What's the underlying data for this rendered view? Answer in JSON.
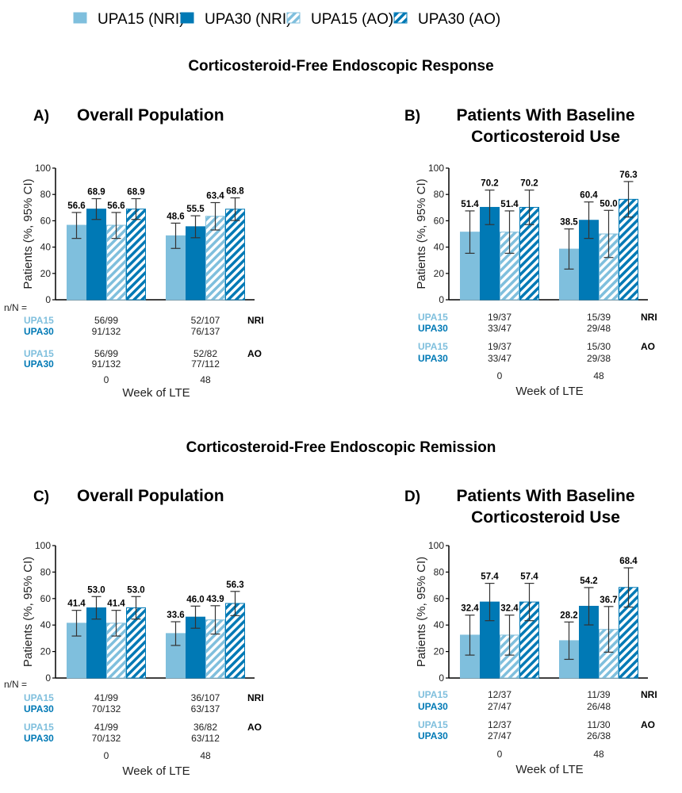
{
  "colors": {
    "light": "#7fbfdd",
    "dark": "#0079b5",
    "error_bar": "#333333",
    "axis": "#000000"
  },
  "legend": [
    {
      "label": "UPA15 (NRI)",
      "color": "#7fbfdd",
      "pattern": "solid"
    },
    {
      "label": "UPA30 (NRI)",
      "color": "#0079b5",
      "pattern": "solid"
    },
    {
      "label": "UPA15 (AO)",
      "color": "#7fbfdd",
      "pattern": "hatched"
    },
    {
      "label": "UPA30 (AO)",
      "color": "#0079b5",
      "pattern": "hatched"
    }
  ],
  "section_titles": [
    "Corticosteroid-Free Endoscopic Response",
    "Corticosteroid-Free Endoscopic Remission"
  ],
  "chart_data": [
    {
      "panel": "A)",
      "title_lines": [
        "Overall Population"
      ],
      "type": "bar",
      "categories": [
        "0",
        "48"
      ],
      "xlabel": "Week of LTE",
      "ylabel": "Patients (%, 95% CI)",
      "ylim": [
        0,
        100
      ],
      "yticks": [
        "0",
        "20",
        "40",
        "60",
        "80",
        "100"
      ],
      "grid": false,
      "series": [
        {
          "name": "UPA15 (NRI)",
          "values": [
            56.6,
            48.6
          ],
          "ci_low": [
            46.6,
            39.0
          ],
          "ci_high": [
            66.3,
            58.2
          ],
          "labels": [
            "56.6",
            "48.6"
          ]
        },
        {
          "name": "UPA30 (NRI)",
          "values": [
            68.9,
            55.5
          ],
          "ci_low": [
            61.0,
            47.1
          ],
          "ci_high": [
            76.8,
            63.8
          ],
          "labels": [
            "68.9",
            "55.5"
          ]
        },
        {
          "name": "UPA15 (AO)",
          "values": [
            56.6,
            63.4
          ],
          "ci_low": [
            46.6,
            53.0
          ],
          "ci_high": [
            66.3,
            73.8
          ],
          "labels": [
            "56.6",
            "63.4"
          ]
        },
        {
          "name": "UPA30 (AO)",
          "values": [
            68.9,
            68.8
          ],
          "ci_low": [
            61.0,
            60.2
          ],
          "ci_high": [
            76.8,
            77.4
          ],
          "labels": [
            "68.9",
            "68.8"
          ]
        }
      ],
      "table": {
        "prefix": "n/N =",
        "nri_label": "NRI",
        "ao_label": "AO",
        "row_labels": [
          "UPA15",
          "UPA30"
        ],
        "nri": [
          [
            "56/99",
            "52/107"
          ],
          [
            "91/132",
            "76/137"
          ]
        ],
        "ao": [
          [
            "56/99",
            "52/82"
          ],
          [
            "91/132",
            "77/112"
          ]
        ]
      }
    },
    {
      "panel": "B)",
      "title_lines": [
        "Patients With Baseline",
        "Corticosteroid Use"
      ],
      "type": "bar",
      "categories": [
        "0",
        "48"
      ],
      "xlabel": "Week of LTE",
      "ylabel": "Patients (%, 95% CI)",
      "ylim": [
        0,
        100
      ],
      "yticks": [
        "0",
        "20",
        "40",
        "60",
        "80",
        "100"
      ],
      "grid": false,
      "series": [
        {
          "name": "UPA15 (NRI)",
          "values": [
            51.4,
            38.5
          ],
          "ci_low": [
            35.3,
            23.3
          ],
          "ci_high": [
            67.5,
            53.8
          ],
          "labels": [
            "51.4",
            "38.5"
          ]
        },
        {
          "name": "UPA30 (NRI)",
          "values": [
            70.2,
            60.4
          ],
          "ci_low": [
            57.1,
            46.6
          ],
          "ci_high": [
            83.3,
            74.3
          ],
          "labels": [
            "70.2",
            "60.4"
          ]
        },
        {
          "name": "UPA15 (AO)",
          "values": [
            51.4,
            50.0
          ],
          "ci_low": [
            35.3,
            32.1
          ],
          "ci_high": [
            67.5,
            67.9
          ],
          "labels": [
            "51.4",
            "50.0"
          ]
        },
        {
          "name": "UPA30 (AO)",
          "values": [
            70.2,
            76.3
          ],
          "ci_low": [
            57.1,
            62.8
          ],
          "ci_high": [
            83.3,
            89.8
          ],
          "labels": [
            "70.2",
            "76.3"
          ]
        }
      ],
      "table": {
        "prefix": "",
        "nri_label": "NRI",
        "ao_label": "AO",
        "row_labels": [
          "UPA15",
          "UPA30"
        ],
        "nri": [
          [
            "19/37",
            "15/39"
          ],
          [
            "33/47",
            "29/48"
          ]
        ],
        "ao": [
          [
            "19/37",
            "15/30"
          ],
          [
            "33/47",
            "29/38"
          ]
        ]
      }
    },
    {
      "panel": "C)",
      "title_lines": [
        "Overall Population"
      ],
      "type": "bar",
      "categories": [
        "0",
        "48"
      ],
      "xlabel": "Week of LTE",
      "ylabel": "Patients (%, 95% CI)",
      "ylim": [
        0,
        100
      ],
      "yticks": [
        "0",
        "20",
        "40",
        "60",
        "80",
        "100"
      ],
      "grid": false,
      "series": [
        {
          "name": "UPA15 (NRI)",
          "values": [
            41.4,
            33.6
          ],
          "ci_low": [
            31.7,
            24.6
          ],
          "ci_high": [
            51.1,
            42.5
          ],
          "labels": [
            "41.4",
            "33.6"
          ]
        },
        {
          "name": "UPA30 (NRI)",
          "values": [
            53.0,
            46.0
          ],
          "ci_low": [
            44.5,
            37.6
          ],
          "ci_high": [
            61.5,
            54.3
          ],
          "labels": [
            "53.0",
            "46.0"
          ]
        },
        {
          "name": "UPA15 (AO)",
          "values": [
            41.4,
            43.9
          ],
          "ci_low": [
            31.7,
            33.2
          ],
          "ci_high": [
            51.1,
            54.6
          ],
          "labels": [
            "41.4",
            "43.9"
          ]
        },
        {
          "name": "UPA30 (AO)",
          "values": [
            53.0,
            56.3
          ],
          "ci_low": [
            44.5,
            47.1
          ],
          "ci_high": [
            61.5,
            65.4
          ],
          "labels": [
            "53.0",
            "56.3"
          ]
        }
      ],
      "table": {
        "prefix": "n/N =",
        "nri_label": "NRI",
        "ao_label": "AO",
        "row_labels": [
          "UPA15",
          "UPA30"
        ],
        "nri": [
          [
            "41/99",
            "36/107"
          ],
          [
            "70/132",
            "63/137"
          ]
        ],
        "ao": [
          [
            "41/99",
            "36/82"
          ],
          [
            "70/132",
            "63/112"
          ]
        ]
      }
    },
    {
      "panel": "D)",
      "title_lines": [
        "Patients With Baseline",
        "Corticosteroid Use"
      ],
      "type": "bar",
      "categories": [
        "0",
        "48"
      ],
      "xlabel": "Week of LTE",
      "ylabel": "Patients (%, 95% CI)",
      "ylim": [
        0,
        100
      ],
      "yticks": [
        "0",
        "20",
        "40",
        "60",
        "80",
        "100"
      ],
      "grid": false,
      "series": [
        {
          "name": "UPA15 (NRI)",
          "values": [
            32.4,
            28.2
          ],
          "ci_low": [
            17.3,
            14.1
          ],
          "ci_high": [
            47.5,
            42.3
          ],
          "labels": [
            "32.4",
            "28.2"
          ]
        },
        {
          "name": "UPA30 (NRI)",
          "values": [
            57.4,
            54.2
          ],
          "ci_low": [
            43.3,
            40.1
          ],
          "ci_high": [
            71.5,
            68.3
          ],
          "labels": [
            "57.4",
            "54.2"
          ]
        },
        {
          "name": "UPA15 (AO)",
          "values": [
            32.4,
            36.7
          ],
          "ci_low": [
            17.3,
            19.5
          ],
          "ci_high": [
            47.5,
            54.0
          ],
          "labels": [
            "32.4",
            "36.7"
          ]
        },
        {
          "name": "UPA30 (AO)",
          "values": [
            57.4,
            68.4
          ],
          "ci_low": [
            43.3,
            53.6
          ],
          "ci_high": [
            71.5,
            83.2
          ],
          "labels": [
            "57.4",
            "68.4"
          ]
        }
      ],
      "table": {
        "prefix": "",
        "nri_label": "NRI",
        "ao_label": "AO",
        "row_labels": [
          "UPA15",
          "UPA30"
        ],
        "nri": [
          [
            "12/37",
            "11/39"
          ],
          [
            "27/47",
            "26/48"
          ]
        ],
        "ao": [
          [
            "12/37",
            "11/30"
          ],
          [
            "27/47",
            "26/38"
          ]
        ]
      }
    }
  ]
}
